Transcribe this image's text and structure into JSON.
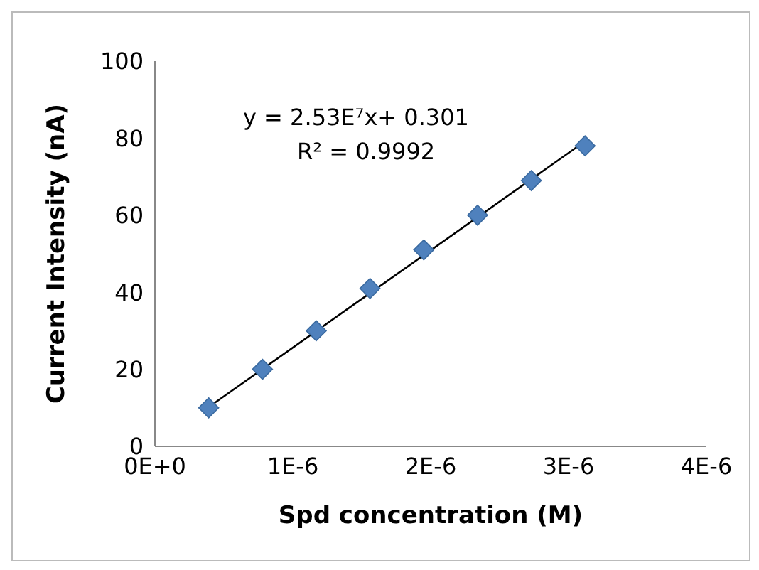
{
  "chart_data": {
    "type": "scatter",
    "xlabel": "Spd concentration (M)",
    "ylabel": "Current Intensity (nA)",
    "xlim": [
      0,
      4e-06
    ],
    "xticks": [
      {
        "value": 0,
        "label": "0E+0"
      },
      {
        "value": 1e-06,
        "label": "1E-6"
      },
      {
        "value": 2e-06,
        "label": "2E-6"
      },
      {
        "value": 3e-06,
        "label": "3E-6"
      },
      {
        "value": 4e-06,
        "label": "4E-6"
      }
    ],
    "ylim": [
      0,
      100
    ],
    "yticks": [
      0,
      20,
      40,
      60,
      80,
      100
    ],
    "grid": false,
    "series": [
      {
        "marker": "diamond",
        "color": "#4f81bd",
        "x": [
          3.9e-07,
          7.8e-07,
          1.17e-06,
          1.56e-06,
          1.95e-06,
          2.34e-06,
          2.73e-06,
          3.12e-06
        ],
        "values": [
          10,
          20,
          30,
          41,
          51,
          60,
          69,
          78
        ]
      },
      {
        "type": "line",
        "marker": "none",
        "color": "#000000",
        "x": [
          3.9e-07,
          3.12e-06
        ],
        "values": [
          10.2,
          79.2
        ]
      }
    ],
    "annotations": [
      "y = 2.53E⁷x+ 0.301",
      "R² = 0.9992"
    ]
  }
}
